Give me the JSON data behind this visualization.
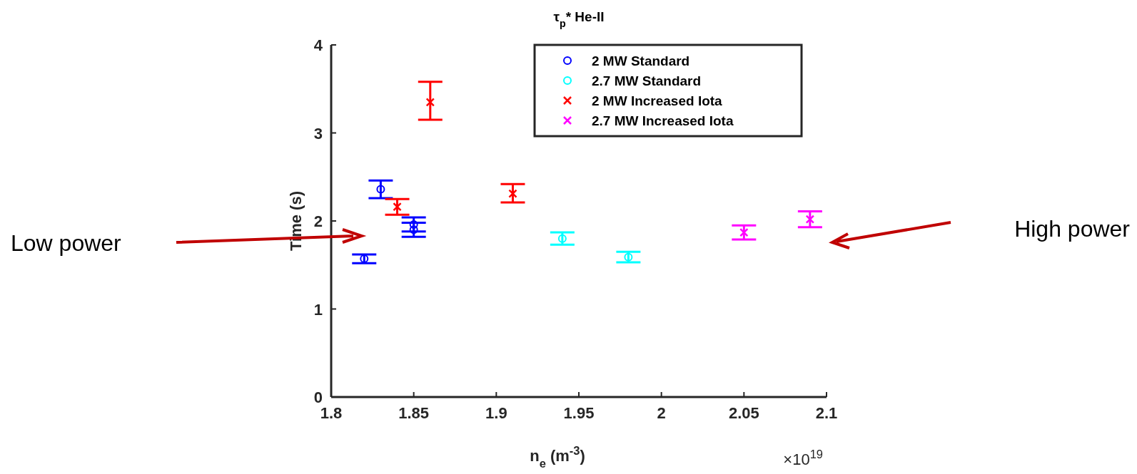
{
  "chart_data": {
    "type": "scatter",
    "title": "τ$_{p}$* He-II",
    "xlabel": "n$_{e}$ (m$^{-3}$)",
    "ylabel": "Time (s)",
    "xlim": [
      1.8,
      2.1
    ],
    "xticks": [
      1.8,
      1.85,
      1.9,
      1.95,
      2,
      2.05,
      2.1
    ],
    "ylim": [
      0,
      4
    ],
    "yticks": [
      0,
      1,
      2,
      3,
      4
    ],
    "grid": false,
    "legend": "top right",
    "annotations": [
      "×10$^{19}$",
      "Low power",
      "High power"
    ],
    "series": [
      {
        "name": "2 MW Standard",
        "color": "#0000ff",
        "marker": "circle",
        "x": [
          1.82,
          1.83,
          1.85,
          1.85
        ],
        "values": [
          1.57,
          2.36,
          1.96,
          1.9
        ],
        "errors": [
          0.05,
          0.1,
          0.08,
          0.08
        ]
      },
      {
        "name": "2.7 MW Standard",
        "color": "#00ffff",
        "marker": "circle",
        "x": [
          1.94,
          1.98
        ],
        "values": [
          1.8,
          1.59
        ],
        "errors": [
          0.07,
          0.06
        ]
      },
      {
        "name": "2 MW Increased Iota",
        "color": "#ff0000",
        "marker": "cross",
        "x": [
          1.84,
          1.86,
          1.91
        ],
        "values": [
          2.16,
          3.35,
          2.31
        ],
        "errors": [
          0.09,
          [
            3.15,
            3.58
          ],
          [
            2.21,
            2.42
          ]
        ]
      },
      {
        "name": "2.7 MW Increased Iota",
        "color": "#ff00ff",
        "marker": "cross",
        "x": [
          2.05,
          2.09
        ],
        "values": [
          1.87,
          2.02
        ],
        "errors": [
          0.08,
          0.09
        ]
      }
    ]
  }
}
